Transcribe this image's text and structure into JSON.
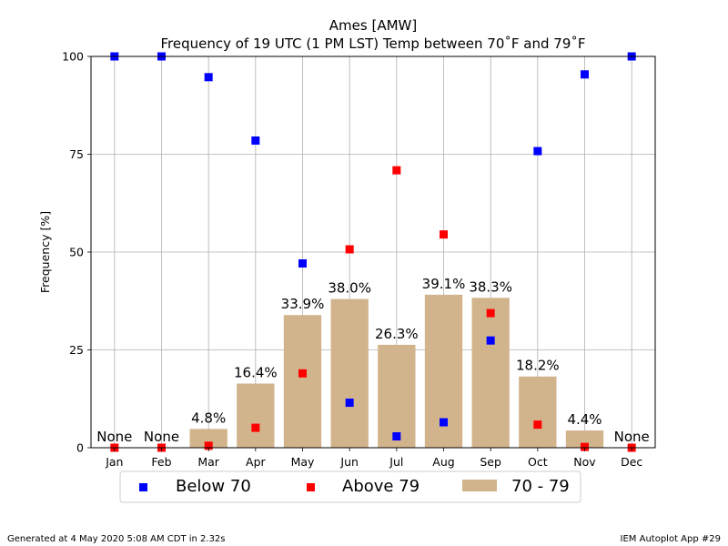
{
  "chart_data": {
    "type": "bar",
    "title": "Ames [AMW]",
    "subtitle": "Frequency of 19 UTC (1 PM LST) Temp between 70˚F and 79˚F",
    "xlabel": "",
    "ylabel": "Frequency [%]",
    "ylim": [
      0,
      100
    ],
    "yticks": [
      0,
      25,
      50,
      75,
      100
    ],
    "grid": true,
    "legend_position": "bottom",
    "categories": [
      "Jan",
      "Feb",
      "Mar",
      "Apr",
      "May",
      "Jun",
      "Jul",
      "Aug",
      "Sep",
      "Oct",
      "Nov",
      "Dec"
    ],
    "bar_series": {
      "name": "70 - 79",
      "color": "#d2b48c",
      "values": [
        0,
        0,
        4.8,
        16.4,
        33.9,
        38.0,
        26.3,
        39.1,
        38.3,
        18.2,
        4.4,
        0
      ],
      "labels": [
        "None",
        "None",
        "4.8%",
        "16.4%",
        "33.9%",
        "38.0%",
        "26.3%",
        "39.1%",
        "38.3%",
        "18.2%",
        "4.4%",
        "None"
      ]
    },
    "scatter_series": [
      {
        "name": "Below 70",
        "color": "#0000ff",
        "values": [
          100,
          100,
          94.7,
          78.5,
          47.1,
          11.5,
          2.9,
          6.5,
          27.4,
          75.8,
          95.4,
          100
        ]
      },
      {
        "name": "Above 79",
        "color": "#ff0000",
        "values": [
          0,
          0,
          0.5,
          5.1,
          19.0,
          50.7,
          70.9,
          54.5,
          34.4,
          5.9,
          0.2,
          0
        ]
      }
    ]
  },
  "footer": {
    "left": "Generated at 4 May 2020 5:08 AM CDT in 2.32s",
    "right": "IEM Autoplot App #29"
  }
}
